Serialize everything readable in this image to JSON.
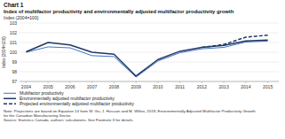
{
  "chart_data": {
    "type": "line",
    "title": "Chart 1",
    "subtitle": "Index of multifactor productivity and environmentally adjusted multifactor productivity growth",
    "y_label": "Index (2004=100)",
    "x": [
      2004,
      2005,
      2006,
      2007,
      2008,
      2009,
      2010,
      2011,
      2012,
      2013,
      2014,
      2015
    ],
    "series": [
      {
        "name": "Multifactor productivity",
        "color": "#4472c4",
        "line_style": "solid",
        "values": [
          100.0,
          100.55,
          100.45,
          99.65,
          99.55,
          97.45,
          99.1,
          99.95,
          100.35,
          100.5,
          101.05,
          101.15
        ]
      },
      {
        "name": "Environmentally adjusted multifactor productivity",
        "color": "#1f3864",
        "line_style": "solid",
        "values": [
          100.05,
          101.0,
          100.75,
          100.0,
          99.8,
          97.55,
          99.25,
          100.1,
          100.5,
          100.7,
          101.15,
          101.25
        ]
      },
      {
        "name": "Projected environmentally adjusted multifactor productivity",
        "color": "#1f3864",
        "line_style": "dashed",
        "values": [
          null,
          null,
          null,
          null,
          null,
          null,
          null,
          null,
          100.5,
          100.8,
          101.55,
          101.75
        ]
      }
    ],
    "xlim": [
      2003.7,
      2015.5
    ],
    "xticks": [
      2004,
      2005,
      2006,
      2007,
      2008,
      2009,
      2010,
      2011,
      2012,
      2013,
      2014,
      2015
    ],
    "ylim": [
      97,
      103
    ],
    "yticks": [
      97,
      98,
      99,
      100,
      101,
      102,
      103
    ],
    "grid": true,
    "legend": "bottom",
    "note": "Note: Projections are based on Equation 14 from W. Gu, J. Hussain and M. Willox, 2019, Environmentally Adjusted Multifactor Productivity Growth\nfor the Canadian Manufacturing Sector.\nSource: Statistics Canada, authors' calculations. See Footnote 3 for details."
  }
}
